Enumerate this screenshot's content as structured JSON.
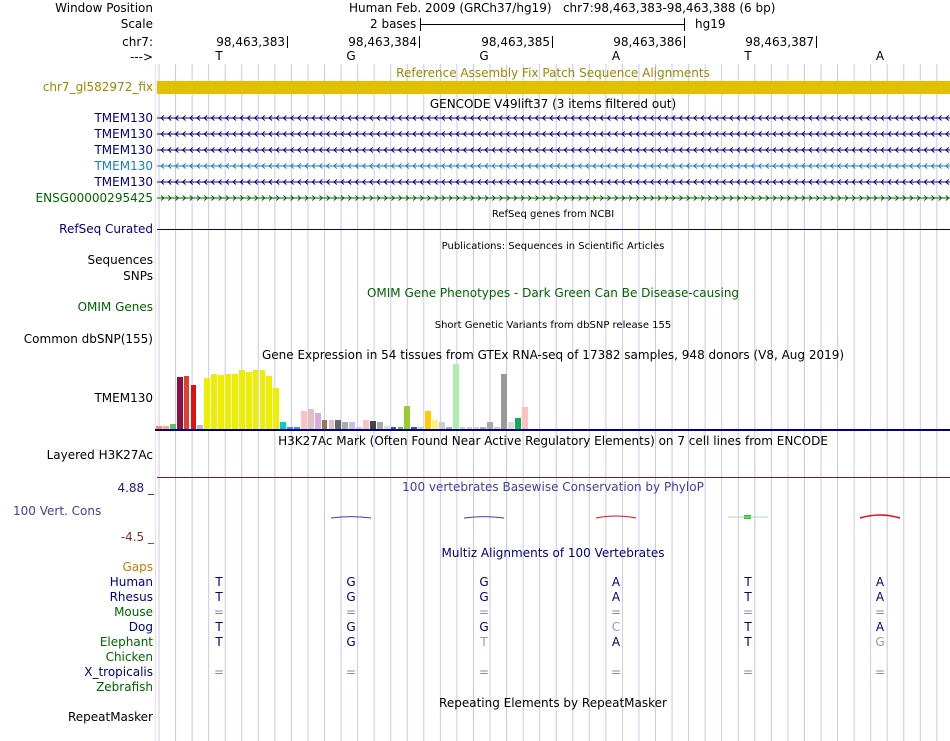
{
  "colors": {
    "navy": "#000080",
    "gencode_light": "#1a7bbf",
    "ensg_green": "#006400",
    "fix_gold": "#e0c000",
    "fix_label": "#998800",
    "cons_blue": "#3f3f9f",
    "cons_max": "#1a1a80",
    "cons_min": "#8b2b2b",
    "gaps_orange": "#cc7a00",
    "grid": "#c8c8ee",
    "h3k_line": "#7a2020",
    "omim_green": "#006400"
  },
  "header": {
    "window_position_label": "Window Position",
    "window_position_value": "Human Feb. 2009 (GRCh37/hg19)   chr7:98,463,383-98,463,388 (6 bp)",
    "scale_label": "Scale",
    "scale_value": "2 bases",
    "scale_assembly": "hg19",
    "chrom_label": "chr7:",
    "strand_label": "--->",
    "coordinates": [
      "98,463,383",
      "98,463,384",
      "98,463,385",
      "98,463,386",
      "98,463,387"
    ]
  },
  "bases": [
    "T",
    "G",
    "G",
    "A",
    "T",
    "A"
  ],
  "tracks": {
    "fix_patch": {
      "title": "Reference Assembly Fix Patch Sequence Alignments",
      "label": "chr7_gl582972_fix"
    },
    "gencode": {
      "title": "GENCODE V49lift37 (3 items filtered out)",
      "items": [
        {
          "label": "TMEM130",
          "color": "#000080"
        },
        {
          "label": "TMEM130",
          "color": "#000080"
        },
        {
          "label": "TMEM130",
          "color": "#000080"
        },
        {
          "label": "TMEM130",
          "color": "#1a7bbf"
        },
        {
          "label": "TMEM130",
          "color": "#000080"
        },
        {
          "label": "ENSG00000295425",
          "color": "#006400"
        }
      ]
    },
    "refseq": {
      "title": "RefSeq genes from NCBI",
      "label": "RefSeq Curated"
    },
    "publications": {
      "title": "Publications: Sequences in Scientific Articles",
      "label1": "Sequences",
      "label2": "SNPs"
    },
    "omim": {
      "title": "OMIM Gene Phenotypes - Dark Green Can Be Disease-causing",
      "label": "OMIM Genes"
    },
    "dbsnp": {
      "title": "Short Genetic Variants from dbSNP release 155",
      "label": "Common dbSNP(155)"
    },
    "gtex": {
      "title": "Gene Expression in 54 tissues from GTEx RNA-seq of 17382 samples, 948 donors (V8, Aug 2019)",
      "label": "TMEM130",
      "bars": [
        {
          "v": 4,
          "c": "#ff8c69"
        },
        {
          "v": 4,
          "c": "#ffaa77"
        },
        {
          "v": 8,
          "c": "#66bb66"
        },
        {
          "v": 79,
          "c": "#881144"
        },
        {
          "v": 80,
          "c": "#e04030"
        },
        {
          "v": 66,
          "c": "#dd1111"
        },
        {
          "v": 6,
          "c": "#bbbbbb"
        },
        {
          "v": 78,
          "c": "#eeee00"
        },
        {
          "v": 83,
          "c": "#eeee00"
        },
        {
          "v": 82,
          "c": "#eeee00"
        },
        {
          "v": 84,
          "c": "#eeee00"
        },
        {
          "v": 83,
          "c": "#eeee00"
        },
        {
          "v": 90,
          "c": "#eeee00"
        },
        {
          "v": 86,
          "c": "#eeee00"
        },
        {
          "v": 90,
          "c": "#eeee00"
        },
        {
          "v": 89,
          "c": "#eeee00"
        },
        {
          "v": 80,
          "c": "#eeee00"
        },
        {
          "v": 62,
          "c": "#eeee00"
        },
        {
          "v": 10,
          "c": "#00cccc"
        },
        {
          "v": 3,
          "c": "#4488ff"
        },
        {
          "v": 3,
          "c": "#4488ff"
        },
        {
          "v": 28,
          "c": "#ffc0c0"
        },
        {
          "v": 31,
          "c": "#e0c0c0"
        },
        {
          "v": 24,
          "c": "#ddaadd"
        },
        {
          "v": 13,
          "c": "#997755"
        },
        {
          "v": 13,
          "c": "#e0c0c0"
        },
        {
          "v": 13,
          "c": "#666666"
        },
        {
          "v": 10,
          "c": "#aaaaaa"
        },
        {
          "v": 10,
          "c": "#ccbbee"
        },
        {
          "v": 3,
          "c": "#cccccc"
        },
        {
          "v": 13,
          "c": "#ffc0c0"
        },
        {
          "v": 12,
          "c": "#444444"
        },
        {
          "v": 10,
          "c": "#aaaaaa"
        },
        {
          "v": 5,
          "c": "#dddddd"
        },
        {
          "v": 3,
          "c": "#4444cc"
        },
        {
          "v": 3,
          "c": "#77aa55"
        },
        {
          "v": 35,
          "c": "#99cc33"
        },
        {
          "v": 3,
          "c": "#4444cc"
        },
        {
          "v": 3,
          "c": "#bbddbb"
        },
        {
          "v": 28,
          "c": "#ffcc00"
        },
        {
          "v": 14,
          "c": "#ffee88"
        },
        {
          "v": 10,
          "c": "#cccccc"
        },
        {
          "v": 3,
          "c": "#aaaaaa"
        },
        {
          "v": 98,
          "c": "#aaeeaa"
        },
        {
          "v": 3,
          "c": "#cccccc"
        },
        {
          "v": 3,
          "c": "#cccccc"
        },
        {
          "v": 3,
          "c": "#cccccc"
        },
        {
          "v": 3,
          "c": "#aaaaaa"
        },
        {
          "v": 10,
          "c": "#aaaaaa"
        },
        {
          "v": 3,
          "c": "#cccccc"
        },
        {
          "v": 84,
          "c": "#999999"
        },
        {
          "v": 10,
          "c": "#dddddd"
        },
        {
          "v": 16,
          "c": "#11aa55"
        },
        {
          "v": 34,
          "c": "#ffc0c0"
        }
      ]
    },
    "h3k27ac": {
      "title": "H3K27Ac Mark (Often Found Near Active Regulatory Elements) on 7 cell lines from ENCODE",
      "label": "Layered H3K27Ac"
    },
    "conservation": {
      "title": "100 vertebrates Basewise Conservation by PhyloP",
      "label": "100 Vert. Cons",
      "max_label": "4.88 _",
      "min_label": "-4.5 _",
      "values": [
        0,
        -0.1,
        -0.12,
        0.35,
        0.6,
        1.0
      ]
    },
    "multiz": {
      "title": "Multiz Alignments of 100 Vertebrates",
      "gaps_label": "Gaps",
      "species": [
        {
          "label": "Human",
          "bases": [
            "T",
            "G",
            "G",
            "A",
            "T",
            "A"
          ],
          "color": "#000080"
        },
        {
          "label": "Rhesus",
          "bases": [
            "T",
            "G",
            "G",
            "A",
            "T",
            "A"
          ],
          "color": "#000080"
        },
        {
          "label": "Mouse",
          "bases": [
            "=",
            "=",
            "=",
            "=",
            "=",
            "="
          ],
          "color": "#006400"
        },
        {
          "label": "Dog",
          "bases": [
            "T",
            "G",
            "G",
            "C",
            "T",
            "A"
          ],
          "color": "#000080"
        },
        {
          "label": "Elephant",
          "bases": [
            "T",
            "G",
            "T",
            "A",
            "T",
            "G"
          ],
          "color": "#006400"
        },
        {
          "label": "Chicken",
          "bases": [
            "",
            "",
            "",
            "",
            "",
            ""
          ],
          "color": "#006400"
        },
        {
          "label": "X_tropicalis",
          "bases": [
            "=",
            "=",
            "=",
            "=",
            "=",
            "="
          ],
          "color": "#000080"
        },
        {
          "label": "Zebrafish",
          "bases": [
            "",
            "",
            "",
            "",
            "",
            ""
          ],
          "color": "#006400"
        }
      ]
    },
    "repeatmasker": {
      "title": "Repeating Elements by RepeatMasker",
      "label": "RepeatMasker"
    }
  }
}
